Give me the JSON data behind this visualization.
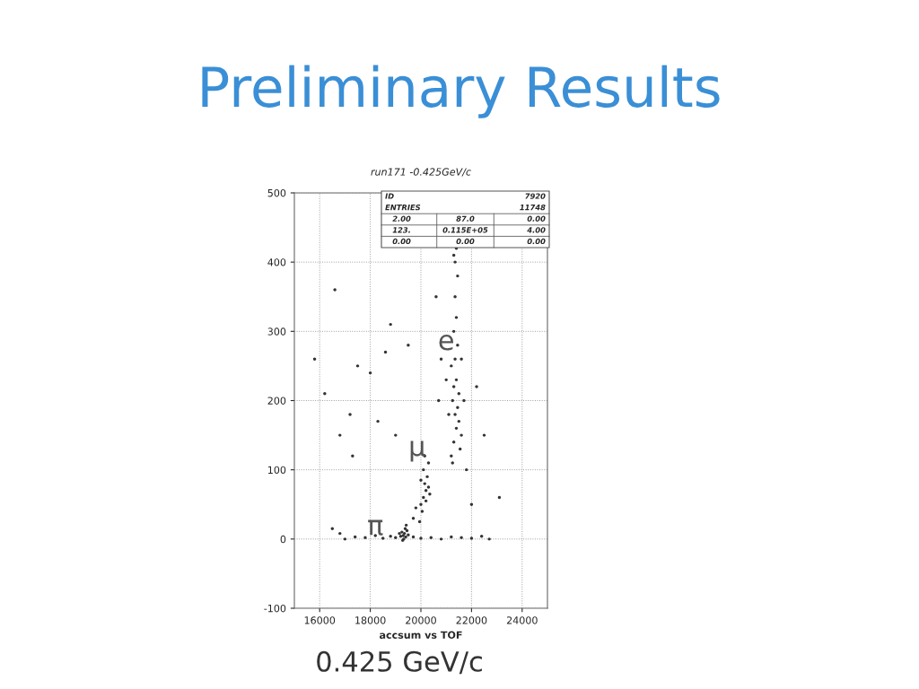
{
  "chart_data": {
    "type": "scatter",
    "title": "Preliminary Results",
    "subtitle": "run171 -0.425GeV/c",
    "xlabel": "accsum vs TOF",
    "annotations": [
      "0.425 GeV/c",
      "e",
      "μ",
      "π",
      "ID",
      "7920",
      "ENTRIES",
      "11748",
      "2.00",
      "87.0",
      "0.00",
      "123.",
      "0.115E+05",
      "4.00",
      "0.00",
      "0.00",
      "0.00"
    ],
    "x": [
      19300,
      19350,
      19400,
      19250,
      19450,
      19320,
      19380,
      19200,
      19500,
      19280,
      19420,
      19150,
      17000,
      17400,
      17800,
      18200,
      18500,
      18800,
      19000,
      19700,
      20000,
      20400,
      20800,
      21200,
      21600,
      22000,
      22400,
      22700,
      16500,
      16800,
      19700,
      19800,
      20000,
      20100,
      20200,
      20150,
      20250,
      20100,
      20300,
      20050,
      20200,
      20300,
      19950,
      20150,
      20350,
      20000,
      21200,
      21300,
      21400,
      21350,
      21250,
      21450,
      21300,
      21500,
      21400,
      21200,
      21350,
      21600,
      21100,
      21450,
      21300,
      21400,
      21350,
      21450,
      21400,
      21500,
      21700,
      21000,
      21550,
      21250,
      20800,
      21600,
      21350,
      21300,
      17500,
      16800,
      17200,
      18000,
      18600,
      16200,
      18300,
      19500,
      20600,
      22200,
      22000,
      23100,
      17300,
      18800,
      22500,
      20700,
      19000,
      15800,
      16600,
      21800
    ],
    "series": [
      {
        "color": "#333333",
        "values": [
          5,
          8,
          3,
          10,
          12,
          0,
          15,
          4,
          6,
          -2,
          20,
          8,
          0,
          3,
          2,
          5,
          1,
          4,
          2,
          3,
          1,
          2,
          0,
          3,
          2,
          1,
          4,
          0,
          15,
          8,
          30,
          45,
          50,
          60,
          70,
          80,
          90,
          100,
          75,
          40,
          55,
          110,
          25,
          120,
          65,
          85,
          120,
          140,
          160,
          180,
          200,
          190,
          220,
          170,
          230,
          250,
          260,
          150,
          180,
          280,
          300,
          320,
          350,
          380,
          420,
          210,
          200,
          230,
          130,
          110,
          260,
          260,
          400,
          410,
          250,
          150,
          180,
          240,
          270,
          210,
          170,
          280,
          350,
          220,
          50,
          60,
          120,
          310,
          150,
          200,
          150,
          260,
          360,
          100
        ]
      }
    ],
    "xlim": [
      15000,
      25000
    ],
    "ylim": [
      -100,
      500
    ],
    "xticks": [
      16000,
      18000,
      20000,
      22000,
      24000
    ],
    "yticks": [
      -100,
      0,
      100,
      200,
      300,
      400,
      500
    ],
    "grid": true,
    "marker": "circle",
    "legend": false
  }
}
